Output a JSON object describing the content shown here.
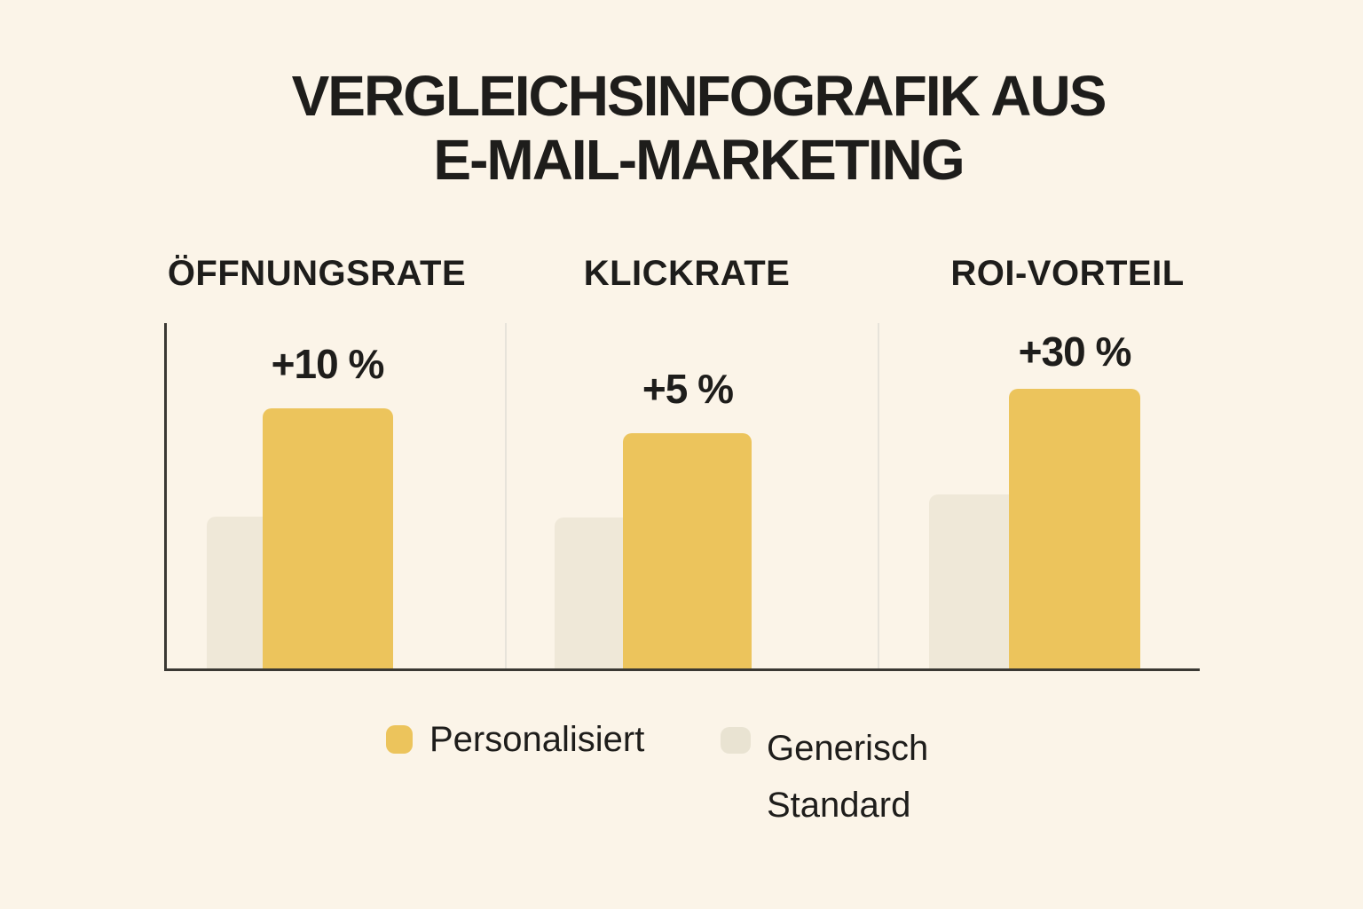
{
  "title": "VERGLEICHSINFOGRAFIK AUS E-MAIL-MARKETING",
  "colors": {
    "background": "#FBF4E8",
    "personalized_yellow": "#ECC45C",
    "generic_beige": "#EFE8D8",
    "legend_beige_swatch": "#E9E3D2",
    "text": "#1E1D1B",
    "axis": "#3A3833",
    "divider": "#E7E3DA"
  },
  "chart_data": {
    "type": "bar",
    "title": "VERGLEICHSINFOGRAFIK AUS E-MAIL-MARKETING",
    "categories": [
      "ÖFFNUNGSRATE",
      "KLICKRATE",
      "ROI-VORTEIL"
    ],
    "annotations": [
      "+10 %",
      "+5 %",
      "+30 %"
    ],
    "series": [
      {
        "name": "Personalisiert",
        "color": "#ECC45C",
        "improvement_pct": [
          10,
          5,
          30
        ],
        "bar_height_fraction_of_plot": [
          0.75,
          0.68,
          0.81
        ]
      },
      {
        "name": "Generisch Standard",
        "color": "#EFE8D8",
        "improvement_pct": [
          0,
          0,
          0
        ],
        "bar_height_fraction_of_plot": [
          0.44,
          0.44,
          0.5
        ]
      }
    ],
    "xlabel": "",
    "ylabel": "",
    "grid": false,
    "tick_labels_visible": false,
    "legend_position": "bottom",
    "notes": "Stylized infographic: paired overlapping bars per category; yellow (Personalisiert) bar annotated with improvement vs. beige (Generisch Standard) baseline."
  },
  "legend": {
    "items": [
      {
        "label": "Personalisiert",
        "color": "#ECC45C"
      },
      {
        "label": "Generisch Standard",
        "color": "#E9E3D2"
      }
    ]
  }
}
